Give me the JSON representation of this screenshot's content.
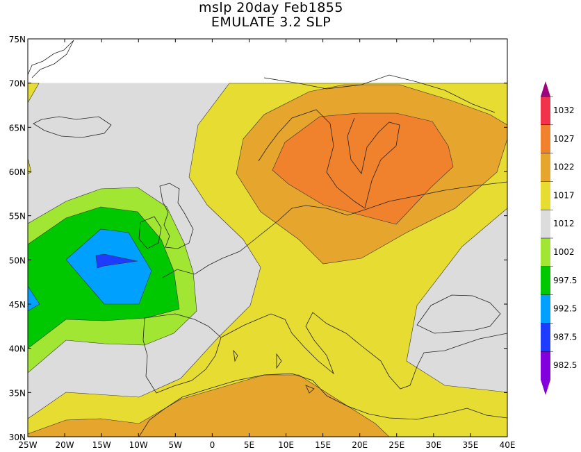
{
  "title_line1": "mslp 20day Feb1855",
  "title_line2": "EMULATE 3.2 SLP",
  "map": {
    "lon_range": [
      -25,
      40
    ],
    "lat_range": [
      30,
      75
    ],
    "data_lat_max": 70,
    "lat_ticks": [
      "75N",
      "70N",
      "65N",
      "60N",
      "55N",
      "50N",
      "45N",
      "40N",
      "35N",
      "30N"
    ],
    "lon_ticks": [
      "25W",
      "20W",
      "15W",
      "10W",
      "5W",
      "0",
      "5E",
      "10E",
      "15E",
      "20E",
      "25E",
      "30E",
      "35E",
      "40E"
    ]
  },
  "legend": {
    "labels": [
      "1032",
      "1027",
      "1022",
      "1017",
      "1012",
      "1002",
      "997.5",
      "992.5",
      "987.5",
      "982.5"
    ],
    "colors": [
      "#a0007d",
      "#f0324a",
      "#f0822d",
      "#e6a52d",
      "#e6dc32",
      "#dcdcdc",
      "#a0e632",
      "#00c800",
      "#00a0ff",
      "#1e3cff",
      "#8200dc"
    ]
  },
  "levels": {
    "ocean_base": "#dcdcdc",
    "c1012": "#e6dc32",
    "c1017": "#e6a52d",
    "c1022": "#f0822d",
    "c1002": "#a0e632",
    "c997": "#00c800",
    "c992": "#00a0ff",
    "c987": "#1e3cff"
  }
}
